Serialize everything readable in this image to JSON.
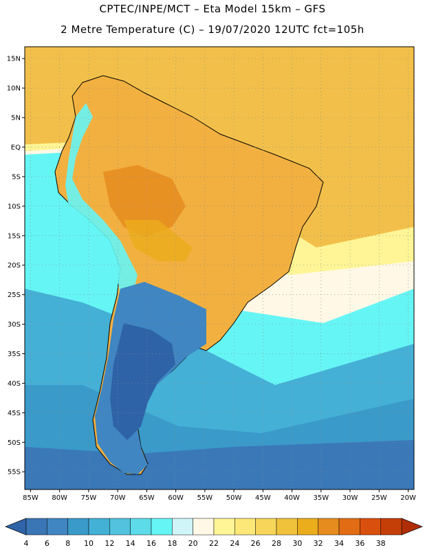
{
  "header": {
    "line1": "CPTEC/INPE/MCT –  Eta Model 15km – GFS",
    "line2": "2 Metre Temperature (C) – 19/07/2020 12UTC fct=105h"
  },
  "map": {
    "lon_range": [
      -86,
      -19
    ],
    "lat_range": [
      -58,
      17
    ],
    "lat_ticks": [
      {
        "v": 15,
        "label": "15N"
      },
      {
        "v": 10,
        "label": "10N"
      },
      {
        "v": 5,
        "label": "5N"
      },
      {
        "v": 0,
        "label": "EQ"
      },
      {
        "v": -5,
        "label": "5S"
      },
      {
        "v": -10,
        "label": "10S"
      },
      {
        "v": -15,
        "label": "15S"
      },
      {
        "v": -20,
        "label": "20S"
      },
      {
        "v": -25,
        "label": "25S"
      },
      {
        "v": -30,
        "label": "30S"
      },
      {
        "v": -35,
        "label": "35S"
      },
      {
        "v": -40,
        "label": "40S"
      },
      {
        "v": -45,
        "label": "45S"
      },
      {
        "v": -50,
        "label": "50S"
      },
      {
        "v": -55,
        "label": "55S"
      }
    ],
    "lon_ticks": [
      {
        "v": -85,
        "label": "85W"
      },
      {
        "v": -80,
        "label": "80W"
      },
      {
        "v": -75,
        "label": "75W"
      },
      {
        "v": -70,
        "label": "70W"
      },
      {
        "v": -65,
        "label": "65W"
      },
      {
        "v": -60,
        "label": "60W"
      },
      {
        "v": -55,
        "label": "55W"
      },
      {
        "v": -50,
        "label": "50W"
      },
      {
        "v": -45,
        "label": "45W"
      },
      {
        "v": -40,
        "label": "40W"
      },
      {
        "v": -35,
        "label": "35W"
      },
      {
        "v": -30,
        "label": "30W"
      },
      {
        "v": -25,
        "label": "25W"
      },
      {
        "v": -20,
        "label": "20W"
      }
    ]
  },
  "colorbar": {
    "labels": [
      "4",
      "6",
      "8",
      "10",
      "12",
      "14",
      "16",
      "18",
      "20",
      "22",
      "24",
      "26",
      "28",
      "30",
      "32",
      "34",
      "36",
      "38"
    ],
    "colors": [
      "#3a75b5",
      "#3f86c2",
      "#3a9ac9",
      "#43b0d6",
      "#52c2de",
      "#5ddbe8",
      "#66f5f5",
      "#d0f5f8",
      "#fff8e6",
      "#fff596",
      "#fbe878",
      "#f6d55a",
      "#f0c23c",
      "#ebad1c",
      "#e68c1e",
      "#e16c14",
      "#d9500e",
      "#c43e08"
    ],
    "low_color": "#2f65a8",
    "high_color": "#b02e06"
  },
  "colors": {
    "ocean_warm": "#f7c544",
    "ocean_mid": "#45b0d6",
    "ocean_cold": "#3a78b8",
    "land_hot": "#f0a838",
    "land_cold": "#2e63a8"
  }
}
